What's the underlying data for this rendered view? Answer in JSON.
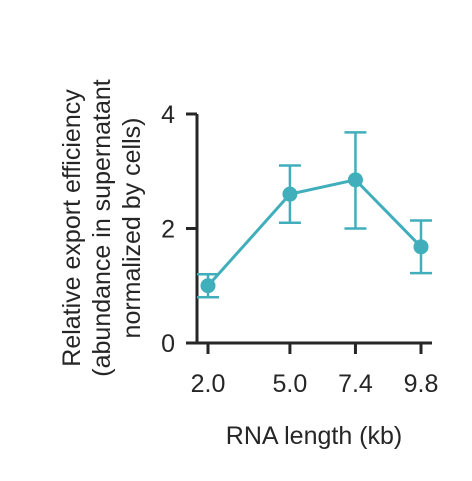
{
  "chart_data": {
    "type": "line",
    "xlabel": "RNA length (kb)",
    "ylabel_lines": [
      "Relative export efficiency",
      "(abundance in supernatant",
      "normalized by cells)"
    ],
    "x": [
      2.0,
      5.0,
      7.4,
      9.8
    ],
    "x_tick_labels": [
      "2.0",
      "5.0",
      "7.4",
      "9.8"
    ],
    "xlim": [
      1.6,
      10.4
    ],
    "ylim": [
      0,
      4
    ],
    "y_ticks": [
      0,
      2,
      4
    ],
    "y_tick_labels": [
      "0",
      "2",
      "4"
    ],
    "grid": false,
    "series": [
      {
        "values": [
          1.0,
          2.6,
          2.85,
          1.68
        ],
        "err_low": [
          0.8,
          2.1,
          2.0,
          1.22
        ],
        "err_high": [
          1.2,
          3.1,
          3.68,
          2.14
        ],
        "color": "#41aebc"
      }
    ]
  }
}
